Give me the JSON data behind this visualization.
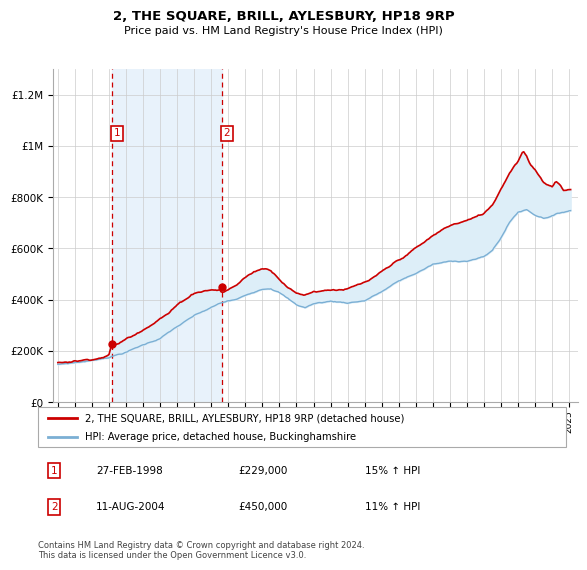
{
  "title": "2, THE SQUARE, BRILL, AYLESBURY, HP18 9RP",
  "subtitle": "Price paid vs. HM Land Registry's House Price Index (HPI)",
  "legend_line1": "2, THE SQUARE, BRILL, AYLESBURY, HP18 9RP (detached house)",
  "legend_line2": "HPI: Average price, detached house, Buckinghamshire",
  "footer": "Contains HM Land Registry data © Crown copyright and database right 2024.\nThis data is licensed under the Open Government Licence v3.0.",
  "transaction1_date": "27-FEB-1998",
  "transaction1_price": 229000,
  "transaction1_hpi": "15% ↑ HPI",
  "transaction2_date": "11-AUG-2004",
  "transaction2_price": 450000,
  "transaction2_hpi": "11% ↑ HPI",
  "ylim": [
    0,
    1300000
  ],
  "yticks": [
    0,
    200000,
    400000,
    600000,
    800000,
    1000000,
    1200000
  ],
  "ytick_labels": [
    "£0",
    "£200K",
    "£400K",
    "£600K",
    "£800K",
    "£1M",
    "£1.2M"
  ],
  "red_color": "#cc0000",
  "blue_color": "#7bafd4",
  "fill_color": "#ddeef8",
  "span_color": "#e8f2fb",
  "grid_color": "#cccccc",
  "transaction1_year": 1998.15,
  "transaction2_year": 2004.62,
  "xmin": 1994.7,
  "xmax": 2025.5
}
